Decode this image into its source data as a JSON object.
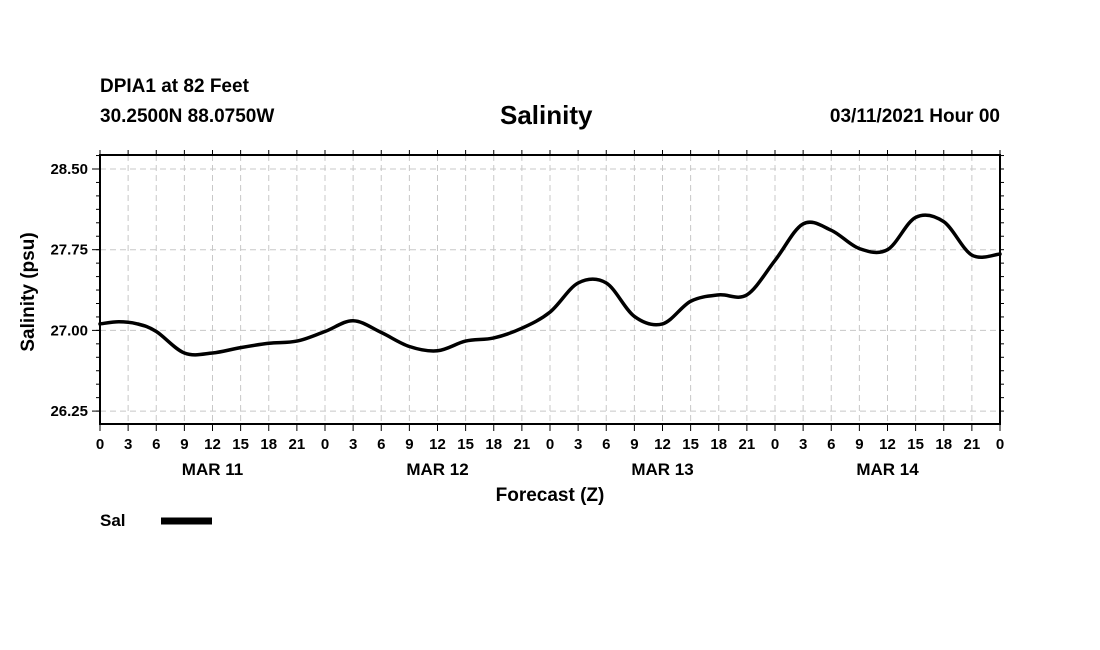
{
  "header": {
    "station": "DPIA1 at 82 Feet",
    "coords": "30.2500N 88.0750W",
    "issued": "03/11/2021 Hour 00"
  },
  "chart_data": {
    "type": "line",
    "title": "Salinity",
    "xlabel": "Forecast (Z)",
    "ylabel": "Salinity (psu)",
    "ylim": [
      26.13,
      28.63
    ],
    "yticks": [
      26.25,
      27.0,
      27.75,
      28.5
    ],
    "ytick_labels": [
      "26.25",
      "27.00",
      "27.75",
      "28.50"
    ],
    "xlim": [
      0,
      96
    ],
    "xticks": [
      0,
      3,
      6,
      9,
      12,
      15,
      18,
      21,
      24,
      27,
      30,
      33,
      36,
      39,
      42,
      45,
      48,
      51,
      54,
      57,
      60,
      63,
      66,
      69,
      72,
      75,
      78,
      81,
      84,
      87,
      90,
      93,
      96
    ],
    "xtick_labels": [
      "0",
      "3",
      "6",
      "9",
      "12",
      "15",
      "18",
      "21",
      "0",
      "3",
      "6",
      "9",
      "12",
      "15",
      "18",
      "21",
      "0",
      "3",
      "6",
      "9",
      "12",
      "15",
      "18",
      "21",
      "0",
      "3",
      "6",
      "9",
      "12",
      "15",
      "18",
      "21",
      "0"
    ],
    "day_labels": [
      {
        "label": "MAR 11",
        "x": 12
      },
      {
        "label": "MAR 12",
        "x": 36
      },
      {
        "label": "MAR 13",
        "x": 60
      },
      {
        "label": "MAR 14",
        "x": 84
      }
    ],
    "grid": true,
    "series": [
      {
        "name": "Sal",
        "x": [
          0,
          2,
          4,
          6,
          9,
          12,
          15,
          18,
          21,
          24,
          27,
          30,
          33,
          36,
          39,
          42,
          45,
          48,
          51,
          54,
          57,
          60,
          63,
          66,
          69,
          72,
          75,
          78,
          81,
          84,
          87,
          90,
          93,
          96
        ],
        "values": [
          27.06,
          27.08,
          27.06,
          26.99,
          26.79,
          26.79,
          26.84,
          26.88,
          26.9,
          26.99,
          27.09,
          26.98,
          26.85,
          26.81,
          26.9,
          26.93,
          27.02,
          27.17,
          27.44,
          27.44,
          27.13,
          27.06,
          27.27,
          27.33,
          27.33,
          27.65,
          27.99,
          27.93,
          27.76,
          27.75,
          28.05,
          28.01,
          27.7,
          27.71
        ]
      }
    ]
  },
  "legend": {
    "label": "Sal"
  }
}
